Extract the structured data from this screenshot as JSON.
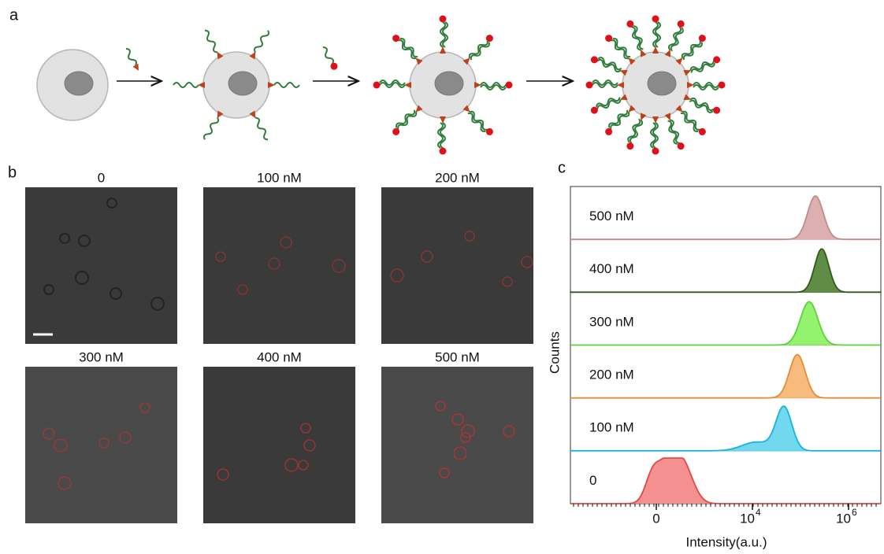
{
  "panels": {
    "a": {
      "label": "a"
    },
    "b": {
      "label": "b",
      "images": [
        {
          "title": "0"
        },
        {
          "title": "100 nM"
        },
        {
          "title": "200 nM"
        },
        {
          "title": "300 nM"
        },
        {
          "title": "400 nM"
        },
        {
          "title": "500 nM"
        }
      ]
    },
    "c": {
      "label": "c",
      "y_label": "Counts",
      "x_label": "Intensity(a.u.)",
      "x_ticks": [
        {
          "text": "0"
        },
        {
          "base": "10",
          "exponent": "4"
        },
        {
          "base": "10",
          "exponent": "6"
        }
      ],
      "rows": [
        {
          "label": "500 nM",
          "fill": "#dcb0b0",
          "stroke": "#c48a8a"
        },
        {
          "label": "400 nM",
          "fill": "#5f8d45",
          "stroke": "#2f5a1c"
        },
        {
          "label": "300 nM",
          "fill": "#93f26e",
          "stroke": "#5cd238"
        },
        {
          "label": "200 nM",
          "fill": "#f8bb7e",
          "stroke": "#e78c34"
        },
        {
          "label": "100 nM",
          "fill": "#72d8f0",
          "stroke": "#1bb2d9"
        },
        {
          "label": "0",
          "fill": "#f49090",
          "stroke": "#e04848"
        }
      ]
    }
  }
}
